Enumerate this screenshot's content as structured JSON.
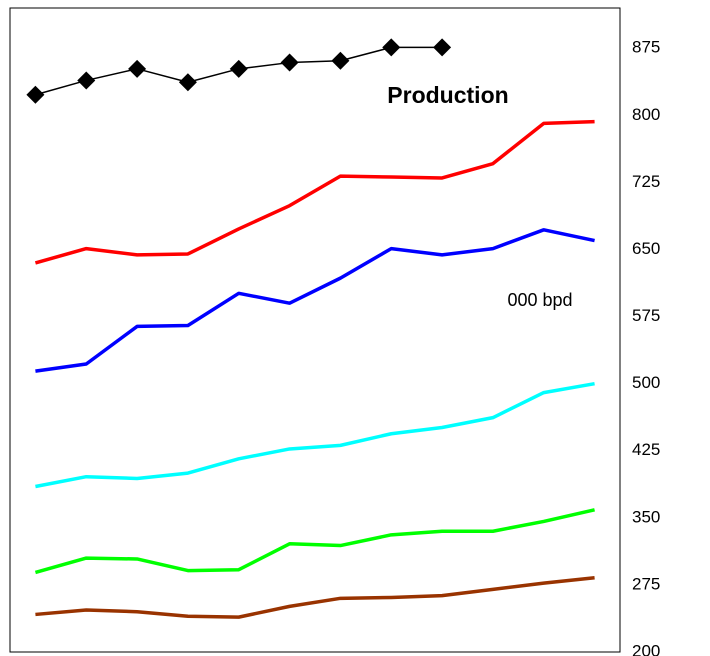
{
  "chart_data": {
    "type": "line",
    "annotations": [
      "Production",
      "000 bpd"
    ],
    "categories": [
      null,
      null,
      null,
      null,
      null,
      null,
      null,
      null,
      null,
      null,
      null,
      null
    ],
    "series": [
      {
        "color": "#000000",
        "marker": "diamond",
        "values": [
          823,
          839,
          852,
          837,
          852,
          859,
          861,
          876,
          876,
          null,
          null,
          null
        ]
      },
      {
        "color": "#ff0000",
        "values": [
          635,
          651,
          644,
          645,
          673,
          699,
          732,
          731,
          730,
          746,
          791,
          793
        ]
      },
      {
        "color": "#0000ff",
        "values": [
          514,
          522,
          564,
          565,
          601,
          590,
          618,
          651,
          644,
          651,
          672,
          660
        ]
      },
      {
        "color": "#00ffff",
        "values": [
          385,
          396,
          394,
          400,
          416,
          427,
          431,
          444,
          451,
          462,
          490,
          500
        ]
      },
      {
        "color": "#00ff00",
        "values": [
          289,
          305,
          304,
          291,
          292,
          321,
          319,
          331,
          335,
          335,
          346,
          359
        ]
      },
      {
        "color": "#993300",
        "values": [
          242,
          247,
          245,
          240,
          239,
          251,
          260,
          261,
          263,
          270,
          277,
          283
        ]
      }
    ],
    "ylim": [
      200,
      920
    ],
    "yticks": [
      200,
      275,
      350,
      425,
      500,
      575,
      650,
      725,
      800,
      875
    ],
    "y_axis_side": "right",
    "grid": false
  }
}
